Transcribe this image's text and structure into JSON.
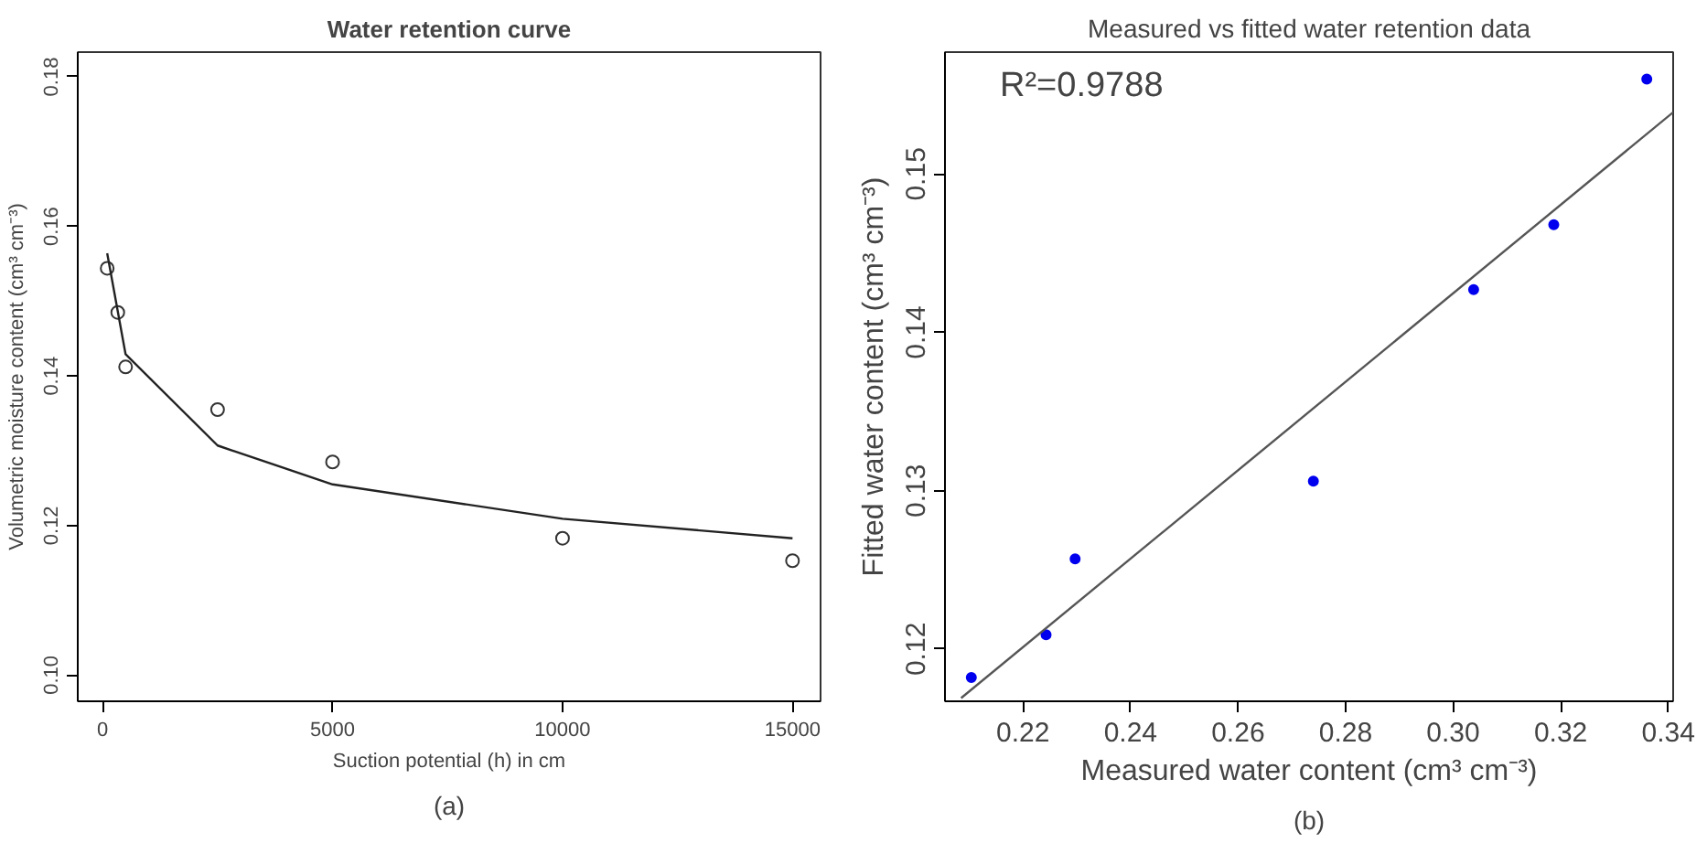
{
  "chart_data": [
    {
      "type": "scatter",
      "title": "Water retention curve",
      "xlabel": "Suction potential (h) in cm",
      "ylabel": "Volumetric moisture content (cm³ cm⁻³)",
      "xlim": [
        -540,
        15610
      ],
      "ylim": [
        0.0965,
        0.1833
      ],
      "xticks": [
        0,
        5000,
        10000,
        15000
      ],
      "yticks": [
        {
          "value": 0.1,
          "label": "0.10"
        },
        0.12,
        0.14,
        0.16,
        0.18
      ],
      "grid": false,
      "annotations": [
        "(a)"
      ],
      "series": [
        {
          "marker": "circle",
          "color": "#333333",
          "x": [
            100,
            330,
            500,
            2500,
            5000,
            10000,
            15000
          ],
          "values": [
            0.1544,
            0.1485,
            0.1412,
            0.1355,
            0.1285,
            0.1183,
            0.1153
          ]
        },
        {
          "type": "line",
          "color": "#222222",
          "x": [
            100,
            500,
            2500,
            5000,
            10000,
            15000
          ],
          "values": [
            0.1564,
            0.1429,
            0.1307,
            0.1255,
            0.1209,
            0.1183
          ]
        }
      ]
    },
    {
      "type": "scatter",
      "title": "Measured vs fitted water retention data",
      "xlabel": "Measured water content (cm³ cm⁻³)",
      "ylabel": "Fitted water content (cm³ cm⁻³)",
      "xlim": [
        0.2055,
        0.3409
      ],
      "ylim": [
        0.1167,
        0.1577
      ],
      "xticks": [
        0.22,
        0.24,
        0.26,
        0.28,
        {
          "value": 0.3,
          "label": "0.30"
        },
        0.32,
        0.34
      ],
      "yticks": [
        0.12,
        0.13,
        0.14,
        0.15
      ],
      "grid": false,
      "annotations": [
        "R²=0.9788",
        "(b)"
      ],
      "series": [
        {
          "marker": "circle",
          "color": "#0000ee",
          "x": [
            0.2104,
            0.2243,
            0.2297,
            0.274,
            0.3038,
            0.3187,
            0.336
          ],
          "values": [
            0.1182,
            0.1209,
            0.1257,
            0.1306,
            0.1427,
            0.1468,
            0.156
          ]
        },
        {
          "type": "line",
          "color": "#555555",
          "x": [
            0.2085,
            0.3409
          ],
          "values": [
            0.1169,
            0.1539
          ]
        }
      ]
    }
  ]
}
